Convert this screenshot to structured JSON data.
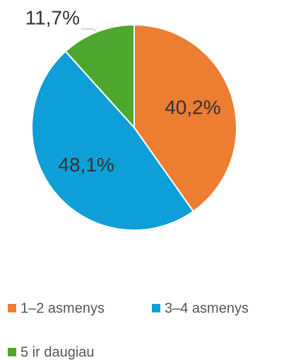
{
  "chart_data": {
    "type": "pie",
    "categories": [
      "1–2 asmenys",
      "3–4 asmenys",
      "5 ir daugiau"
    ],
    "values": [
      40.2,
      48.1,
      11.7
    ],
    "value_labels": [
      "40,2%",
      "48,1%",
      "11,7%"
    ],
    "colors": [
      "#ed7d31",
      "#0e9fd8",
      "#4ea72e"
    ],
    "legend": "bottom"
  }
}
